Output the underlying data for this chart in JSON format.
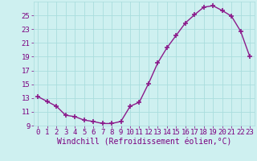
{
  "x": [
    0,
    1,
    2,
    3,
    4,
    5,
    6,
    7,
    8,
    9,
    10,
    11,
    12,
    13,
    14,
    15,
    16,
    17,
    18,
    19,
    20,
    21,
    22,
    23
  ],
  "y": [
    13.2,
    12.5,
    11.8,
    10.5,
    10.3,
    9.8,
    9.6,
    9.3,
    9.3,
    9.6,
    11.8,
    12.4,
    15.1,
    18.1,
    20.3,
    22.1,
    23.9,
    25.1,
    26.2,
    26.4,
    25.7,
    24.9,
    22.7,
    19.0
  ],
  "line_color": "#8B1A8B",
  "marker": "+",
  "marker_size": 4,
  "marker_linewidth": 1.2,
  "line_width": 1.0,
  "xlabel": "Windchill (Refroidissement éolien,°C)",
  "ylim": [
    9,
    27
  ],
  "xlim": [
    -0.5,
    23.5
  ],
  "yticks": [
    9,
    11,
    13,
    15,
    17,
    19,
    21,
    23,
    25
  ],
  "xticks": [
    0,
    1,
    2,
    3,
    4,
    5,
    6,
    7,
    8,
    9,
    10,
    11,
    12,
    13,
    14,
    15,
    16,
    17,
    18,
    19,
    20,
    21,
    22,
    23
  ],
  "xtick_labels": [
    "0",
    "1",
    "2",
    "3",
    "4",
    "5",
    "6",
    "7",
    "8",
    "9",
    "10",
    "11",
    "12",
    "13",
    "14",
    "15",
    "16",
    "17",
    "18",
    "19",
    "20",
    "21",
    "22",
    "23"
  ],
  "background_color": "#cef0f0",
  "grid_color": "#aadddd",
  "tick_color": "#7B0080",
  "tick_fontsize": 6.5,
  "xlabel_fontsize": 7,
  "font_family": "monospace"
}
